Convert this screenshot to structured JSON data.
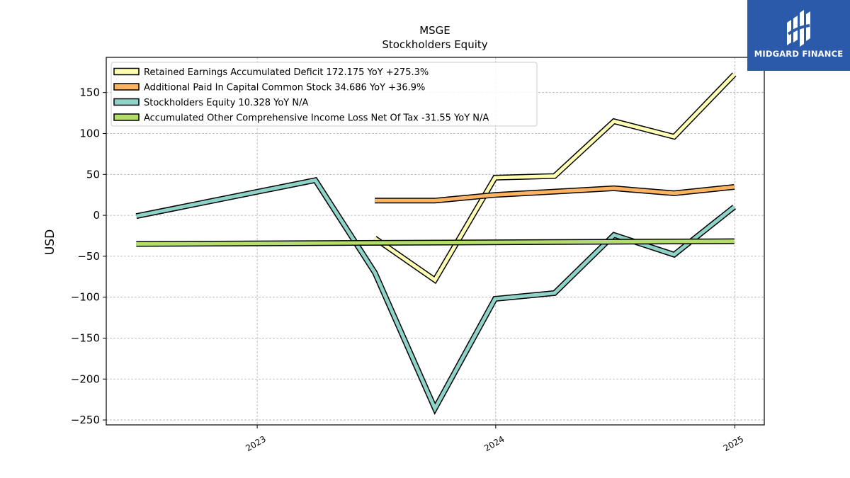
{
  "brand": {
    "name": "MIDGARD FINANCE",
    "background": "#2b5aab"
  },
  "chart_data": {
    "type": "line",
    "title": "MSGE",
    "subtitle": "Stockholders  Equity",
    "xlabel": "",
    "ylabel": "USD",
    "grid": true,
    "legend_position": "top-left",
    "x_ticks": [
      "2023",
      "2024",
      "2025"
    ],
    "y_ticks": [
      150,
      100,
      50,
      0,
      -50,
      -100,
      -150,
      -200,
      -250
    ],
    "y_tick_labels": [
      "150",
      "100",
      "50",
      "0",
      "−50",
      "−100",
      "−150",
      "−200",
      "−250"
    ],
    "xlim": [
      "2022-05-15",
      "2025-02-15"
    ],
    "ylim": [
      -256,
      193
    ],
    "series": [
      {
        "name": "Retained Earnings Accumulated Deficit",
        "legend_label": "Retained Earnings Accumulated Deficit  172.175 YoY +275.3%",
        "color": "#ffffb3",
        "x": [
          "2023-06-30",
          "2023-09-30",
          "2023-12-31",
          "2024-03-31",
          "2024-06-30",
          "2024-09-30",
          "2024-12-31"
        ],
        "values": [
          -28,
          -79,
          46,
          48,
          115,
          96,
          172.175
        ]
      },
      {
        "name": "Additional Paid In Capital Common Stock",
        "legend_label": "Additional Paid In Capital Common Stock  34.686 YoY +36.9%",
        "color": "#fdb462",
        "x": [
          "2023-06-30",
          "2023-09-30",
          "2023-12-31",
          "2024-03-31",
          "2024-06-30",
          "2024-09-30",
          "2024-12-31"
        ],
        "values": [
          18,
          18,
          25,
          29,
          33,
          27,
          34.686
        ]
      },
      {
        "name": "Stockholders Equity",
        "legend_label": "Stockholders Equity  10.328 YoY N/A",
        "color": "#8dd3c7",
        "x": [
          "2022-06-30",
          "2023-03-31",
          "2023-06-30",
          "2023-09-30",
          "2023-12-31",
          "2024-03-31",
          "2024-06-30",
          "2024-09-30",
          "2024-12-31"
        ],
        "values": [
          -1,
          43,
          -70,
          -236,
          -102,
          -95,
          -24,
          -48,
          10.328
        ]
      },
      {
        "name": "Accumulated Other Comprehensive Income Loss Net Of Tax",
        "legend_label": "Accumulated Other Comprehensive Income Loss Net Of Tax  -31.55 YoY N/A",
        "color": "#b3de69",
        "x": [
          "2022-06-30",
          "2024-12-31"
        ],
        "values": [
          -35,
          -31.55
        ]
      }
    ]
  }
}
